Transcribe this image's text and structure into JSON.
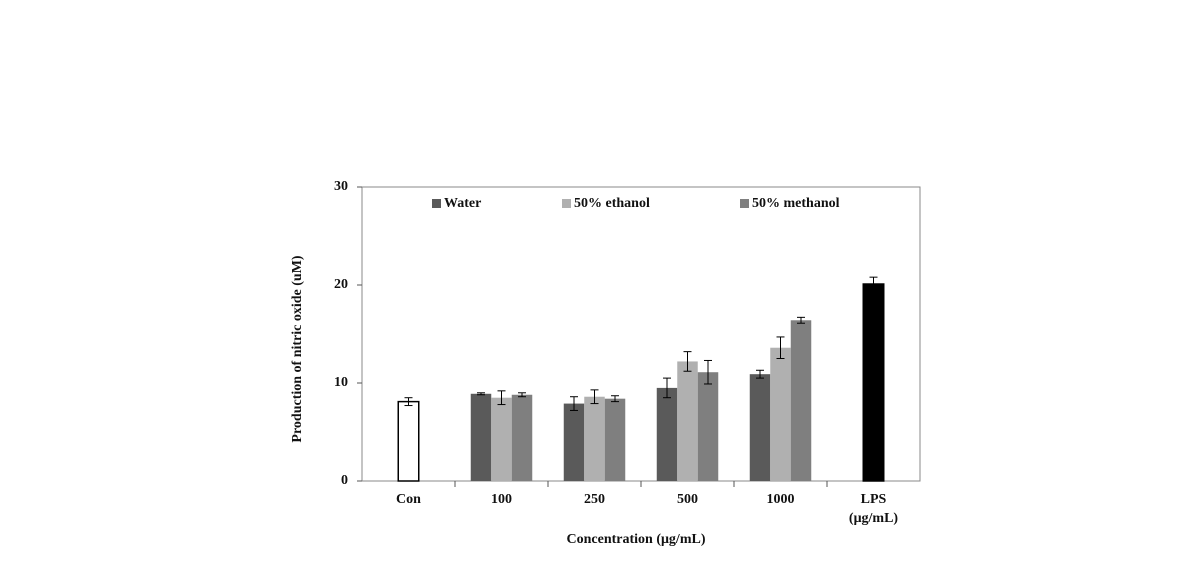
{
  "chart_data": {
    "type": "bar",
    "x_label": "Concentration  (μg/mL)",
    "y_label": "Production of nitric oxide (uM)",
    "categories": [
      "Con",
      "100",
      "250",
      "500",
      "1000",
      "LPS"
    ],
    "category_note": "(μg/mL)",
    "series": [
      {
        "name": "Water",
        "color": "#5a5a5a",
        "values": [
          null,
          8.9,
          7.9,
          9.5,
          10.9,
          null
        ],
        "errors": [
          null,
          0.1,
          0.7,
          1.0,
          0.4,
          null
        ]
      },
      {
        "name": "50% ethanol",
        "color": "#b0b0b0",
        "values": [
          null,
          8.5,
          8.6,
          12.2,
          13.6,
          null
        ],
        "errors": [
          null,
          0.7,
          0.7,
          1.0,
          1.1,
          null
        ]
      },
      {
        "name": "50% methanol",
        "color": "#7f7f7f",
        "values": [
          null,
          8.8,
          8.4,
          11.1,
          16.4,
          null
        ],
        "errors": [
          null,
          0.2,
          0.3,
          1.2,
          0.3,
          null
        ]
      }
    ],
    "single_bars": {
      "values": [
        8.1,
        null,
        null,
        null,
        null,
        20.1
      ],
      "errors": [
        0.4,
        null,
        null,
        null,
        null,
        0.7
      ],
      "colors": [
        "#ffffff",
        null,
        null,
        null,
        null,
        "#000000"
      ]
    },
    "ylim": [
      0,
      30
    ],
    "yticks": [
      0,
      10,
      20,
      30
    ],
    "legend": "top"
  }
}
